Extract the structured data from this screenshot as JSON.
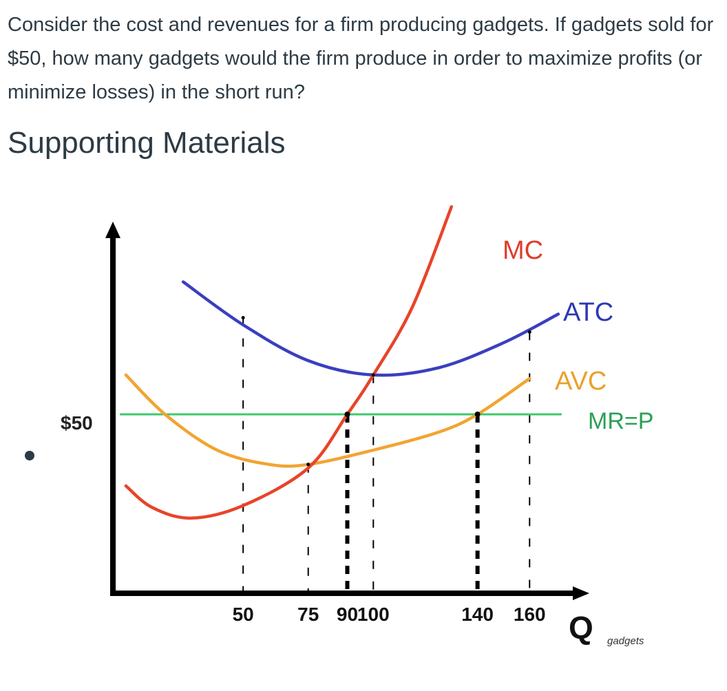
{
  "question": "Consider the cost and revenues for a firm producing gadgets. If gadgets sold for $50, how many gadgets would the firm produce in order to maximize profits (or minimize losses) in the short run?",
  "section_heading": "Supporting Materials",
  "colors": {
    "mc": "#e8442a",
    "atc": "#3b3fbf",
    "avc": "#f2a431",
    "mr": "#3cc96b",
    "axis": "#000000",
    "label_blue": "#2b38b5",
    "label_red": "#e03c2b",
    "label_orange": "#eaa02a",
    "label_green": "#2a9f55"
  },
  "chart_data": {
    "type": "line",
    "title": "",
    "xlabel": "Q",
    "xlabel_sub": "gadgets",
    "ylabel": "",
    "y_price_label": "$50",
    "price": 50,
    "xlim": [
      0,
      175
    ],
    "ylim": [
      0,
      100
    ],
    "x_ticks": [
      {
        "value": 50,
        "label": "50"
      },
      {
        "value": 75,
        "label": "75"
      },
      {
        "value": 90,
        "label": "90"
      },
      {
        "value": 100,
        "label": "100"
      },
      {
        "value": 140,
        "label": "140"
      },
      {
        "value": 160,
        "label": "160"
      }
    ],
    "series": [
      {
        "name": "MC",
        "key": "mc",
        "points": [
          [
            5,
            30
          ],
          [
            15,
            24
          ],
          [
            30,
            21
          ],
          [
            50,
            24.5
          ],
          [
            75,
            35
          ],
          [
            90,
            50
          ],
          [
            100,
            61
          ],
          [
            115,
            80
          ],
          [
            130,
            108
          ]
        ]
      },
      {
        "name": "ATC",
        "key": "atc",
        "points": [
          [
            27,
            87
          ],
          [
            50,
            75
          ],
          [
            75,
            65
          ],
          [
            100,
            61
          ],
          [
            125,
            63
          ],
          [
            150,
            70
          ],
          [
            171,
            78
          ]
        ]
      },
      {
        "name": "AVC",
        "key": "avc",
        "points": [
          [
            5,
            61
          ],
          [
            20,
            50
          ],
          [
            40,
            40
          ],
          [
            60,
            36
          ],
          [
            75,
            36
          ],
          [
            100,
            40
          ],
          [
            125,
            45
          ],
          [
            140,
            50
          ],
          [
            160,
            60
          ]
        ]
      },
      {
        "name": "MR=P",
        "key": "mr",
        "points": [
          [
            3,
            50
          ],
          [
            172,
            50
          ]
        ]
      }
    ],
    "dropped_lines": [
      {
        "x": 50,
        "to": 77,
        "style": "thin"
      },
      {
        "x": 75,
        "to": 36,
        "style": "thin"
      },
      {
        "x": 90,
        "to": 50,
        "style": "thick"
      },
      {
        "x": 100,
        "to": 61,
        "style": "thin"
      },
      {
        "x": 140,
        "to": 50,
        "style": "thick"
      },
      {
        "x": 160,
        "to": 73,
        "style": "thin"
      }
    ],
    "annotations": [
      "MC",
      "ATC",
      "AVC",
      "MR=P"
    ]
  }
}
